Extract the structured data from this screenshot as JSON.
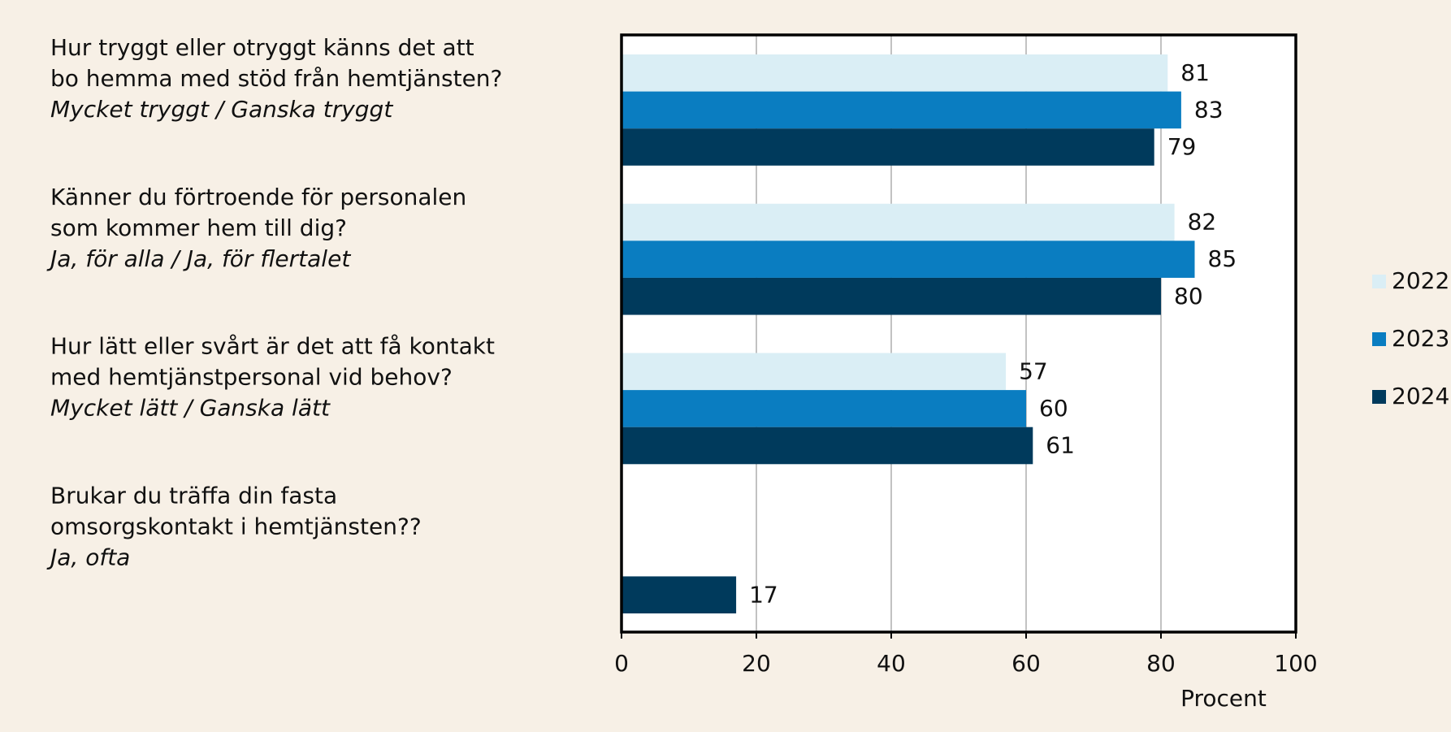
{
  "chart_data": {
    "type": "hbar",
    "categories": [
      {
        "question": [
          "Hur tryggt eller otryggt känns det att",
          "bo hemma med stöd från hemtjänsten?"
        ],
        "answer": "Mycket tryggt / Ganska tryggt"
      },
      {
        "question": [
          "Känner du förtroende för personalen",
          "som kommer hem till dig?"
        ],
        "answer": "Ja, för alla / Ja, för flertalet"
      },
      {
        "question": [
          "Hur lätt eller svårt är det att få kontakt",
          "med hemtjänstpersonal vid behov?"
        ],
        "answer": "Mycket lätt / Ganska lätt"
      },
      {
        "question": [
          "Brukar du träffa din fasta",
          "omsorgskontakt i hemtjänsten??"
        ],
        "answer": "Ja, ofta"
      }
    ],
    "series": [
      {
        "name": "2022",
        "color": "#daeef5",
        "values": [
          81,
          82,
          57,
          null
        ]
      },
      {
        "name": "2023",
        "color": "#0a7dc1",
        "values": [
          83,
          85,
          60,
          null
        ]
      },
      {
        "name": "2024",
        "color": "#003a5c",
        "values": [
          79,
          80,
          61,
          17
        ]
      }
    ],
    "xlim": [
      0,
      100
    ],
    "xticks": [
      0,
      20,
      40,
      60,
      80,
      100
    ],
    "xlabel": "Procent",
    "grid": true,
    "legend": "right"
  }
}
